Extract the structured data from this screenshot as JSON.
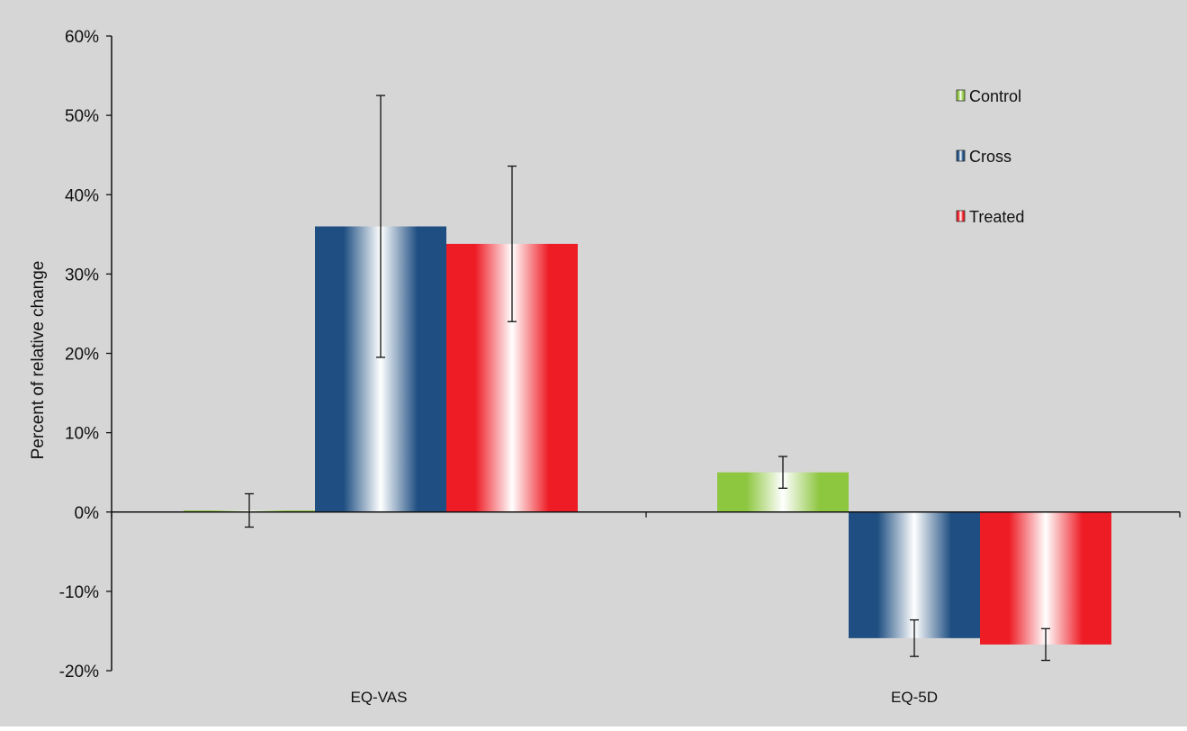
{
  "colors": {
    "background": "#d6d6d6",
    "axis": "#111111",
    "control": "#8dc63f",
    "cross": "#1f4f82",
    "treated": "#ee1c25",
    "error_bar": "#111111"
  },
  "chart_data": {
    "type": "bar",
    "title": "",
    "xlabel": "",
    "ylabel": "Percent of relative change",
    "ylim": [
      -20,
      60
    ],
    "ytick_values": [
      -20,
      -10,
      0,
      10,
      20,
      30,
      40,
      50,
      60
    ],
    "ytick_labels": [
      "-20%",
      "-10%",
      "0%",
      "10%",
      "20%",
      "30%",
      "40%",
      "50%",
      "60%"
    ],
    "categories": [
      "EQ-VAS",
      "EQ-5D"
    ],
    "series": [
      {
        "name": "Control",
        "color_key": "control",
        "values": [
          0.2,
          5.0
        ],
        "errors": [
          2.1,
          2.0
        ]
      },
      {
        "name": "Cross",
        "color_key": "cross",
        "values": [
          36.0,
          -15.9
        ],
        "errors": [
          16.5,
          2.3
        ]
      },
      {
        "name": "Treated",
        "color_key": "treated",
        "values": [
          33.8,
          -16.7
        ],
        "errors": [
          9.8,
          2.0
        ]
      }
    ],
    "legend_position": "top-right",
    "grid": false
  }
}
